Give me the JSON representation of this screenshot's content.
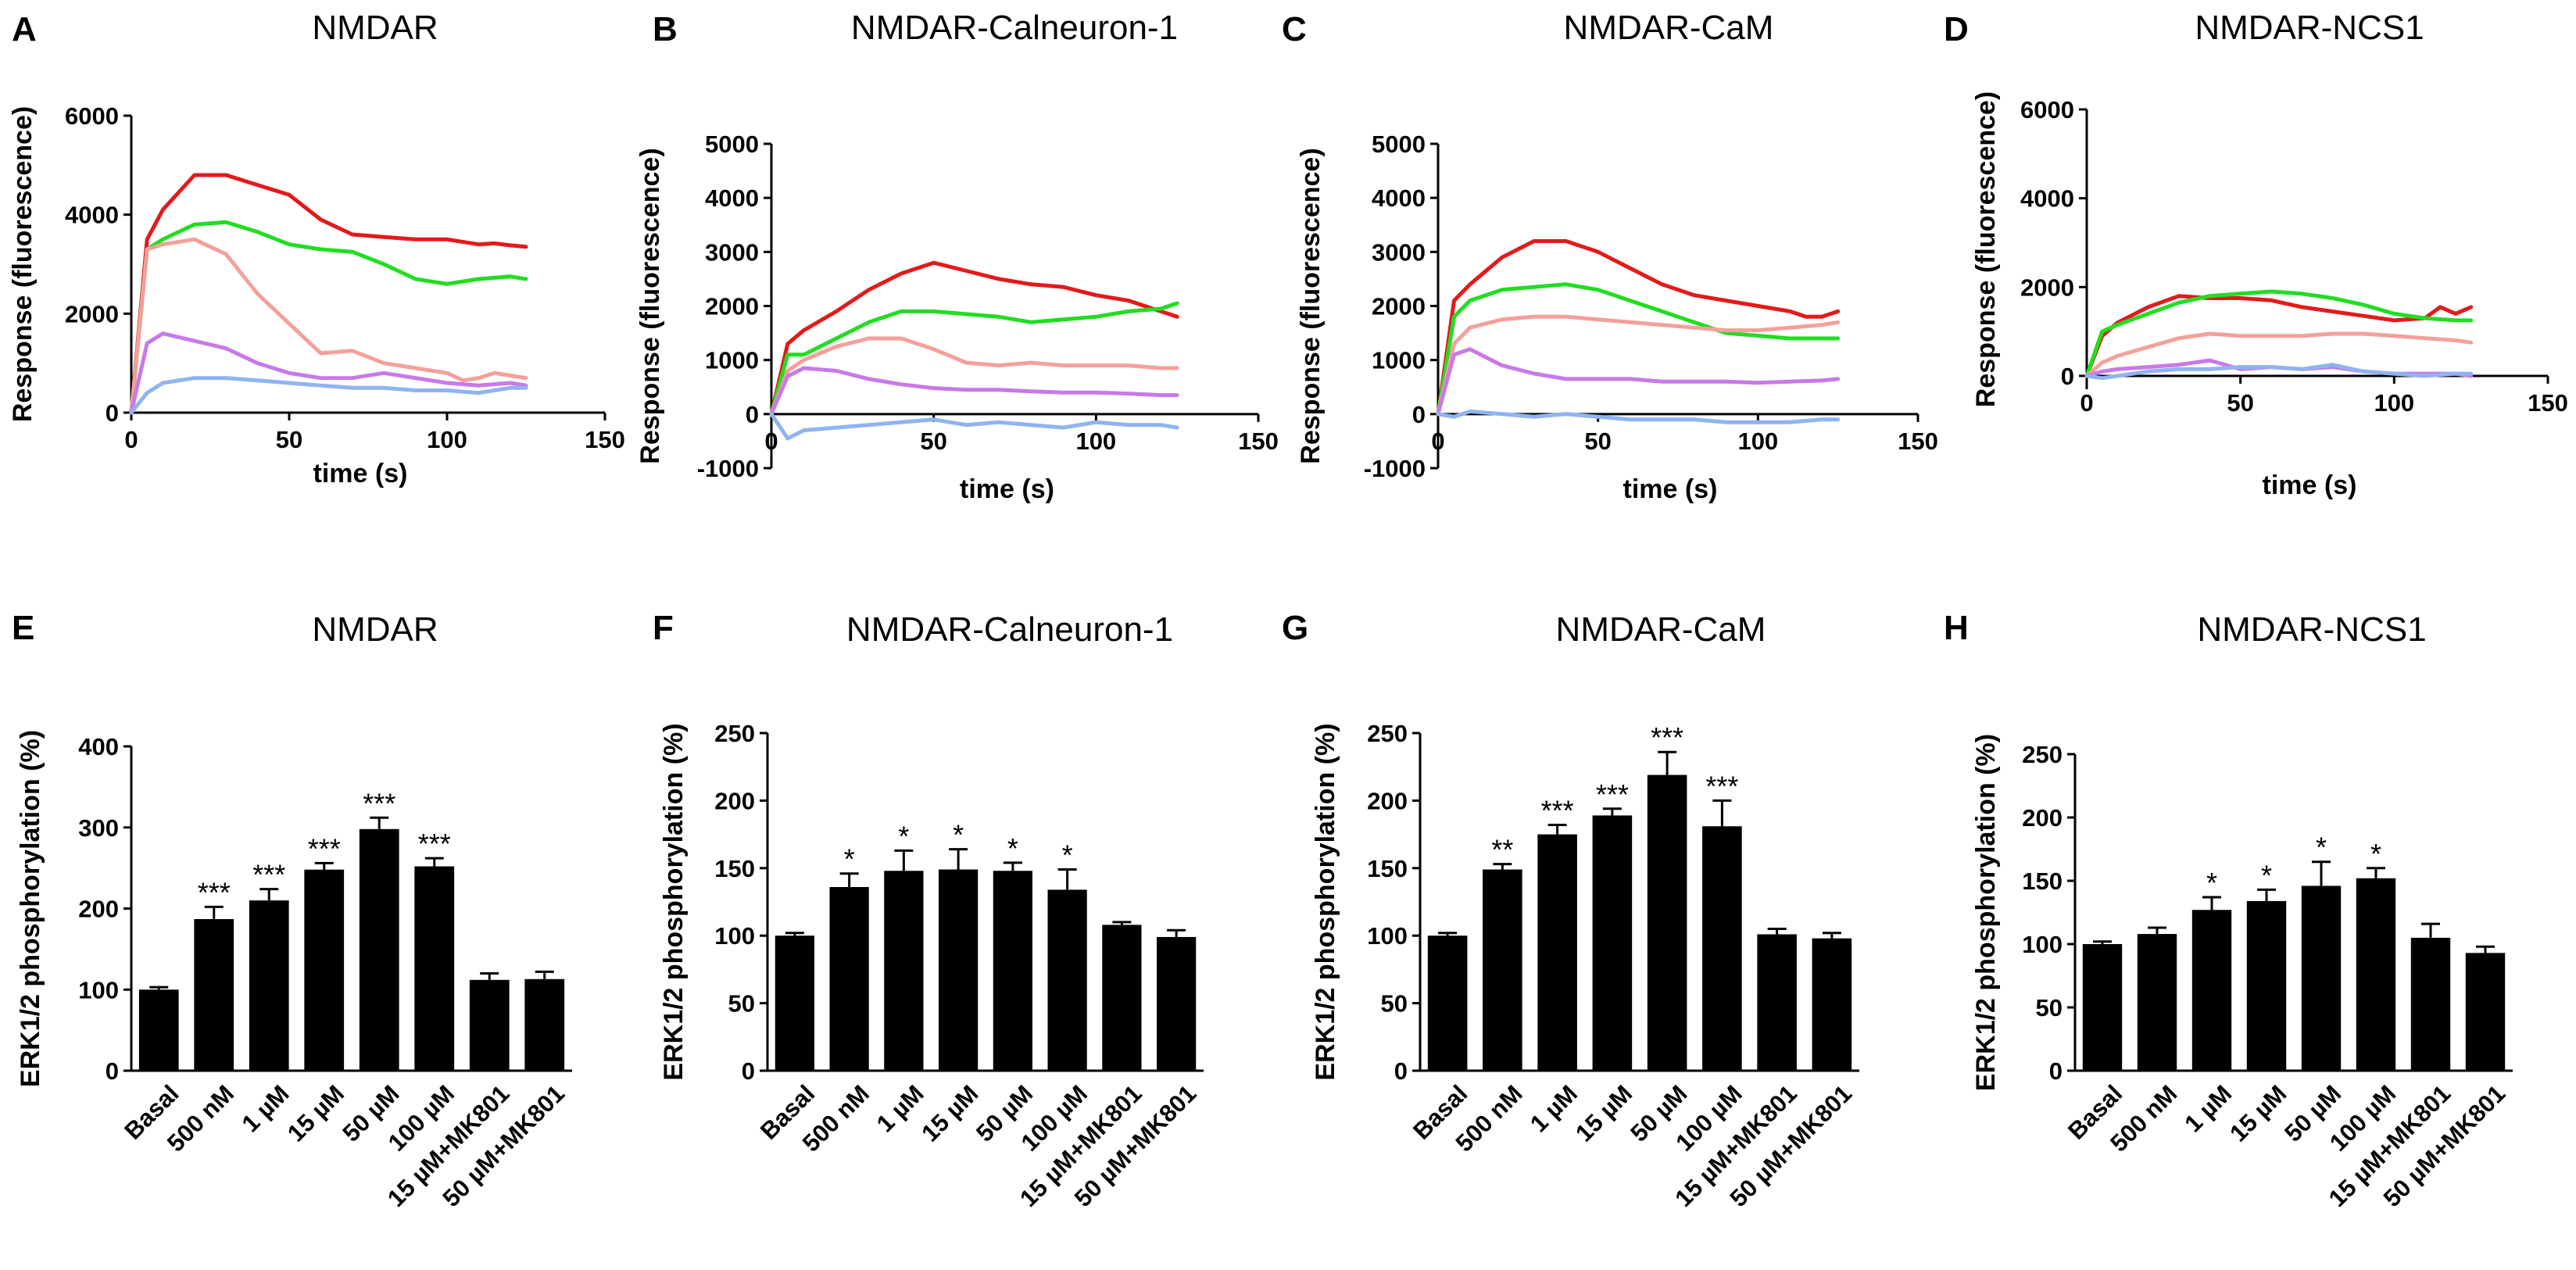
{
  "figure": {
    "colors": {
      "red": "#e31a1c",
      "green": "#22dd22",
      "pink": "#f4a09a",
      "violet": "#c77ae8",
      "blue": "#8fb4ef",
      "bar": "#000000"
    }
  },
  "chart_data": [
    {
      "panel": "A",
      "type": "line",
      "title": "NMDAR",
      "xlabel": "time (s)",
      "ylabel": "Response (fluorescence)",
      "xlim": [
        0,
        150
      ],
      "ylim": [
        0,
        6000
      ],
      "xticks": [
        0,
        50,
        100,
        150
      ],
      "yticks": [
        0,
        2000,
        4000,
        6000
      ],
      "series": [
        {
          "name": "red",
          "x": [
            0,
            5,
            10,
            20,
            30,
            40,
            50,
            60,
            70,
            80,
            90,
            100,
            110,
            115,
            120,
            125
          ],
          "values": [
            0,
            3500,
            4100,
            4800,
            4800,
            4600,
            4400,
            3900,
            3600,
            3550,
            3500,
            3500,
            3400,
            3420,
            3380,
            3350
          ]
        },
        {
          "name": "green",
          "x": [
            0,
            5,
            10,
            20,
            30,
            40,
            50,
            60,
            70,
            80,
            90,
            100,
            110,
            120,
            125
          ],
          "values": [
            0,
            3300,
            3500,
            3800,
            3850,
            3650,
            3400,
            3300,
            3250,
            3000,
            2700,
            2600,
            2700,
            2750,
            2700
          ]
        },
        {
          "name": "pink",
          "x": [
            0,
            5,
            10,
            20,
            30,
            40,
            50,
            60,
            70,
            80,
            90,
            100,
            105,
            110,
            115,
            120,
            125
          ],
          "values": [
            0,
            3300,
            3400,
            3500,
            3200,
            2400,
            1800,
            1200,
            1250,
            1000,
            900,
            800,
            650,
            700,
            800,
            750,
            700
          ]
        },
        {
          "name": "violet",
          "x": [
            0,
            5,
            10,
            20,
            30,
            40,
            50,
            60,
            70,
            80,
            90,
            100,
            110,
            120,
            125
          ],
          "values": [
            0,
            1400,
            1600,
            1450,
            1300,
            1000,
            800,
            700,
            700,
            800,
            700,
            600,
            550,
            600,
            550
          ]
        },
        {
          "name": "blue",
          "x": [
            0,
            5,
            10,
            20,
            30,
            40,
            50,
            60,
            70,
            80,
            90,
            100,
            110,
            120,
            125
          ],
          "values": [
            0,
            400,
            600,
            700,
            700,
            650,
            600,
            550,
            500,
            500,
            450,
            450,
            400,
            500,
            500
          ]
        }
      ]
    },
    {
      "panel": "B",
      "type": "line",
      "title": "NMDAR-Calneuron-1",
      "xlabel": "time (s)",
      "ylabel": "Response (fluorescence)",
      "xlim": [
        0,
        150
      ],
      "ylim": [
        -1000,
        5000
      ],
      "xticks": [
        0,
        50,
        100,
        150
      ],
      "yticks": [
        -1000,
        0,
        1000,
        2000,
        3000,
        4000,
        5000
      ],
      "series": [
        {
          "name": "red",
          "x": [
            0,
            5,
            10,
            20,
            30,
            40,
            50,
            60,
            70,
            80,
            90,
            100,
            110,
            115,
            120,
            125
          ],
          "values": [
            0,
            1300,
            1550,
            1900,
            2300,
            2600,
            2800,
            2650,
            2500,
            2400,
            2350,
            2200,
            2100,
            2000,
            1900,
            1800
          ]
        },
        {
          "name": "green",
          "x": [
            0,
            5,
            10,
            20,
            30,
            40,
            50,
            60,
            70,
            80,
            90,
            100,
            110,
            120,
            125
          ],
          "values": [
            0,
            1100,
            1100,
            1400,
            1700,
            1900,
            1900,
            1850,
            1800,
            1700,
            1750,
            1800,
            1900,
            1950,
            2050
          ]
        },
        {
          "name": "pink",
          "x": [
            0,
            5,
            10,
            20,
            30,
            40,
            50,
            60,
            70,
            80,
            90,
            100,
            110,
            120,
            125
          ],
          "values": [
            0,
            800,
            1000,
            1250,
            1400,
            1400,
            1200,
            950,
            900,
            950,
            900,
            900,
            900,
            850,
            850
          ]
        },
        {
          "name": "violet",
          "x": [
            0,
            5,
            10,
            20,
            30,
            40,
            50,
            60,
            70,
            80,
            90,
            100,
            110,
            120,
            125
          ],
          "values": [
            0,
            700,
            850,
            800,
            650,
            550,
            480,
            450,
            450,
            420,
            400,
            400,
            380,
            350,
            350
          ]
        },
        {
          "name": "blue",
          "x": [
            0,
            5,
            10,
            20,
            30,
            40,
            50,
            60,
            70,
            80,
            90,
            100,
            110,
            120,
            125
          ],
          "values": [
            0,
            -450,
            -300,
            -250,
            -200,
            -150,
            -100,
            -200,
            -150,
            -200,
            -250,
            -150,
            -200,
            -200,
            -250
          ]
        }
      ]
    },
    {
      "panel": "C",
      "type": "line",
      "title": "NMDAR-CaM",
      "xlabel": "time (s)",
      "ylabel": "Response (fluorescence)",
      "xlim": [
        0,
        150
      ],
      "ylim": [
        -1000,
        5000
      ],
      "xticks": [
        0,
        50,
        100,
        150
      ],
      "yticks": [
        -1000,
        0,
        1000,
        2000,
        3000,
        4000,
        5000
      ],
      "series": [
        {
          "name": "red",
          "x": [
            0,
            5,
            10,
            20,
            30,
            40,
            50,
            60,
            70,
            80,
            90,
            100,
            110,
            115,
            120,
            125
          ],
          "values": [
            0,
            2100,
            2400,
            2900,
            3200,
            3200,
            3000,
            2700,
            2400,
            2200,
            2100,
            2000,
            1900,
            1800,
            1800,
            1900
          ]
        },
        {
          "name": "green",
          "x": [
            0,
            5,
            10,
            20,
            30,
            40,
            50,
            60,
            70,
            80,
            90,
            100,
            110,
            120,
            125
          ],
          "values": [
            0,
            1800,
            2100,
            2300,
            2350,
            2400,
            2300,
            2100,
            1900,
            1700,
            1500,
            1450,
            1400,
            1400,
            1400
          ]
        },
        {
          "name": "pink",
          "x": [
            0,
            5,
            10,
            20,
            30,
            40,
            50,
            60,
            70,
            80,
            90,
            100,
            110,
            120,
            125
          ],
          "values": [
            0,
            1300,
            1600,
            1750,
            1800,
            1800,
            1750,
            1700,
            1650,
            1600,
            1550,
            1550,
            1600,
            1650,
            1700
          ]
        },
        {
          "name": "violet",
          "x": [
            0,
            5,
            10,
            20,
            30,
            40,
            50,
            60,
            70,
            80,
            90,
            100,
            110,
            120,
            125
          ],
          "values": [
            0,
            1100,
            1200,
            900,
            750,
            650,
            650,
            650,
            600,
            600,
            600,
            580,
            600,
            620,
            650
          ]
        },
        {
          "name": "blue",
          "x": [
            0,
            5,
            10,
            20,
            30,
            40,
            50,
            60,
            70,
            80,
            90,
            100,
            110,
            120,
            125
          ],
          "values": [
            0,
            -50,
            50,
            0,
            -50,
            0,
            -50,
            -100,
            -100,
            -100,
            -150,
            -150,
            -150,
            -100,
            -100
          ]
        }
      ]
    },
    {
      "panel": "D",
      "type": "line",
      "title": "NMDAR-NCS1",
      "xlabel": "time (s)",
      "ylabel": "Response (fluorescence)",
      "xlim": [
        0,
        150
      ],
      "ylim": [
        -300,
        6000
      ],
      "xticks": [
        0,
        50,
        100,
        150
      ],
      "yticks": [
        0,
        2000,
        4000,
        6000
      ],
      "series": [
        {
          "name": "red",
          "x": [
            0,
            5,
            10,
            20,
            30,
            40,
            50,
            60,
            70,
            80,
            90,
            100,
            110,
            115,
            120,
            125
          ],
          "values": [
            0,
            900,
            1200,
            1550,
            1800,
            1750,
            1750,
            1700,
            1550,
            1450,
            1350,
            1250,
            1300,
            1550,
            1400,
            1550
          ]
        },
        {
          "name": "green",
          "x": [
            0,
            5,
            10,
            20,
            30,
            40,
            50,
            60,
            70,
            80,
            90,
            100,
            110,
            120,
            125
          ],
          "values": [
            0,
            1000,
            1150,
            1400,
            1650,
            1800,
            1850,
            1900,
            1850,
            1750,
            1600,
            1400,
            1300,
            1250,
            1250
          ]
        },
        {
          "name": "pink",
          "x": [
            0,
            5,
            10,
            20,
            30,
            40,
            50,
            60,
            70,
            80,
            90,
            100,
            110,
            120,
            125
          ],
          "values": [
            0,
            300,
            450,
            650,
            850,
            950,
            900,
            900,
            900,
            950,
            950,
            900,
            850,
            800,
            750
          ]
        },
        {
          "name": "violet",
          "x": [
            0,
            5,
            10,
            20,
            30,
            40,
            50,
            60,
            70,
            80,
            90,
            100,
            110,
            120,
            125
          ],
          "values": [
            0,
            100,
            150,
            200,
            250,
            350,
            150,
            200,
            150,
            200,
            100,
            50,
            50,
            50,
            0
          ]
        },
        {
          "name": "blue",
          "x": [
            0,
            5,
            10,
            20,
            30,
            40,
            50,
            60,
            70,
            80,
            90,
            100,
            110,
            120,
            125
          ],
          "values": [
            0,
            -50,
            0,
            100,
            150,
            150,
            200,
            200,
            150,
            250,
            100,
            50,
            0,
            50,
            50
          ]
        }
      ]
    },
    {
      "panel": "E",
      "type": "bar",
      "title": "NMDAR",
      "xlabel": "",
      "ylabel": "ERK1/2 phosphorylation (%)",
      "ylim": [
        0,
        400
      ],
      "yticks": [
        0,
        100,
        200,
        300,
        400
      ],
      "categories": [
        "Basal",
        "500 nM",
        "1 µM",
        "15 µM",
        "50 µM",
        "100 µM",
        "15 µM+MK801",
        "50 µM+MK801"
      ],
      "values": [
        100,
        187,
        210,
        248,
        298,
        252,
        112,
        113
      ],
      "errors": [
        3,
        15,
        14,
        8,
        14,
        10,
        8,
        9
      ],
      "significance": [
        "",
        "***",
        "***",
        "***",
        "***",
        "***",
        "",
        ""
      ]
    },
    {
      "panel": "F",
      "type": "bar",
      "title": "NMDAR-Calneuron-1",
      "xlabel": "",
      "ylabel": "ERK1/2 phosphorylation (%)",
      "ylim": [
        0,
        250
      ],
      "yticks": [
        0,
        50,
        100,
        150,
        200,
        250
      ],
      "categories": [
        "Basal",
        "500 nM",
        "1 µM",
        "15 µM",
        "50 µM",
        "100 µM",
        "15 µM+MK801",
        "50 µM+MK801"
      ],
      "values": [
        100,
        136,
        148,
        149,
        148,
        134,
        108,
        99
      ],
      "errors": [
        2,
        10,
        15,
        15,
        6,
        15,
        2,
        5
      ],
      "significance": [
        "",
        "*",
        "*",
        "*",
        "*",
        "*",
        "",
        ""
      ]
    },
    {
      "panel": "G",
      "type": "bar",
      "title": "NMDAR-CaM",
      "xlabel": "",
      "ylabel": "ERK1/2 phosphorylation (%)",
      "ylim": [
        0,
        250
      ],
      "yticks": [
        0,
        50,
        100,
        150,
        200,
        250
      ],
      "categories": [
        "Basal",
        "500 nM",
        "1 µM",
        "15 µM",
        "50 µM",
        "100 µM",
        "15 µM+MK801",
        "50 µM+MK801"
      ],
      "values": [
        100,
        149,
        175,
        189,
        219,
        181,
        101,
        98
      ],
      "errors": [
        2,
        4,
        7,
        5,
        17,
        19,
        4,
        4
      ],
      "significance": [
        "",
        "**",
        "***",
        "***",
        "***",
        "***",
        "",
        ""
      ]
    },
    {
      "panel": "H",
      "type": "bar",
      "title": "NMDAR-NCS1",
      "xlabel": "",
      "ylabel": "ERK1/2 phosphorylation (%)",
      "ylim": [
        0,
        250
      ],
      "yticks": [
        0,
        50,
        100,
        150,
        200,
        250
      ],
      "categories": [
        "Basal",
        "500 nM",
        "1 µM",
        "15 µM",
        "50 µM",
        "100 µM",
        "15 µM+MK801",
        "50 µM+MK801"
      ],
      "values": [
        100,
        108,
        127,
        134,
        146,
        152,
        105,
        93
      ],
      "errors": [
        2,
        5,
        10,
        9,
        19,
        8,
        11,
        5
      ],
      "significance": [
        "",
        "",
        "*",
        "*",
        "*",
        "*",
        "",
        ""
      ]
    }
  ]
}
